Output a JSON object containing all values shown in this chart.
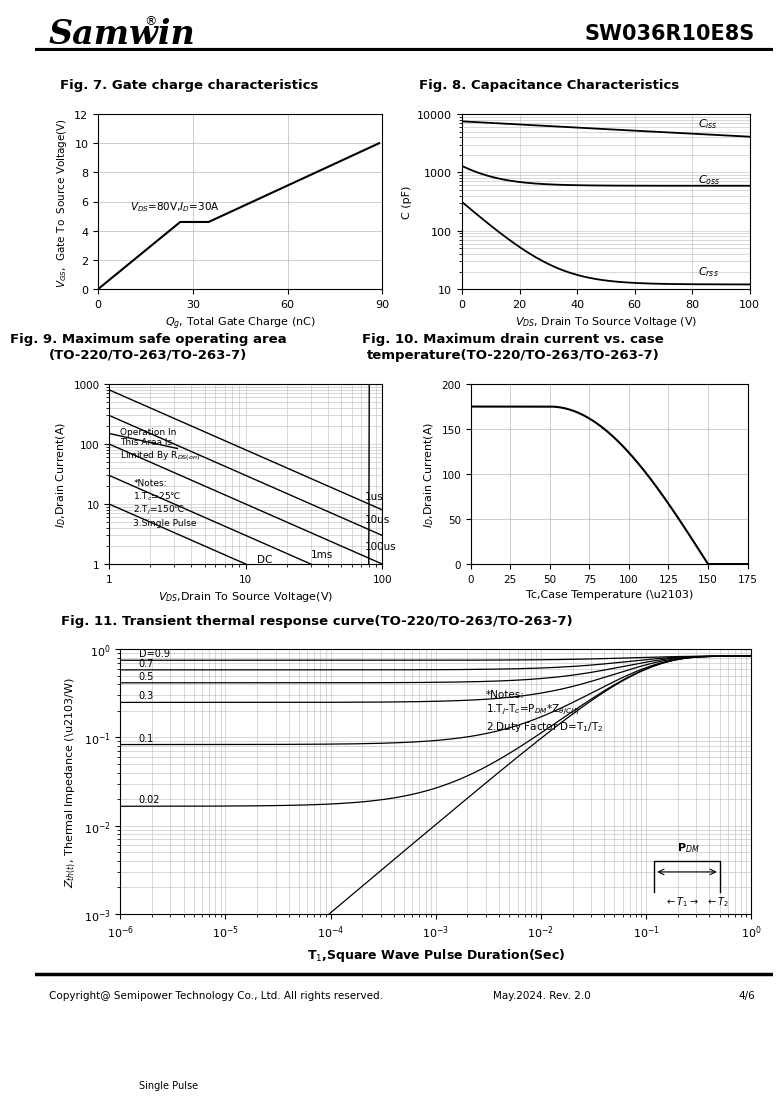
{
  "title_left": "Samwin",
  "title_right": "SW036R10E8S",
  "fig7_title": "Fig. 7. Gate charge characteristics",
  "fig8_title": "Fig. 8. Capacitance Characteristics",
  "fig9_title": "Fig. 9. Maximum safe operating area\n(TO-220/TO-263/TO-263-7)",
  "fig10_title": "Fig. 10. Maximum drain current vs. case\ntemperature(TO-220/TO-263/TO-263-7)",
  "fig11_title": "Fig. 11. Transient thermal response curve(TO-220/TO-263/TO-263-7)",
  "footer": "Copyright@ Semipower Technology Co., Ltd. All rights reserved.",
  "footer_mid": "May.2024. Rev. 2.0",
  "footer_right": "4/6",
  "bg_color": "#ffffff",
  "line_color": "#000000",
  "grid_color": "#bbbbbb"
}
